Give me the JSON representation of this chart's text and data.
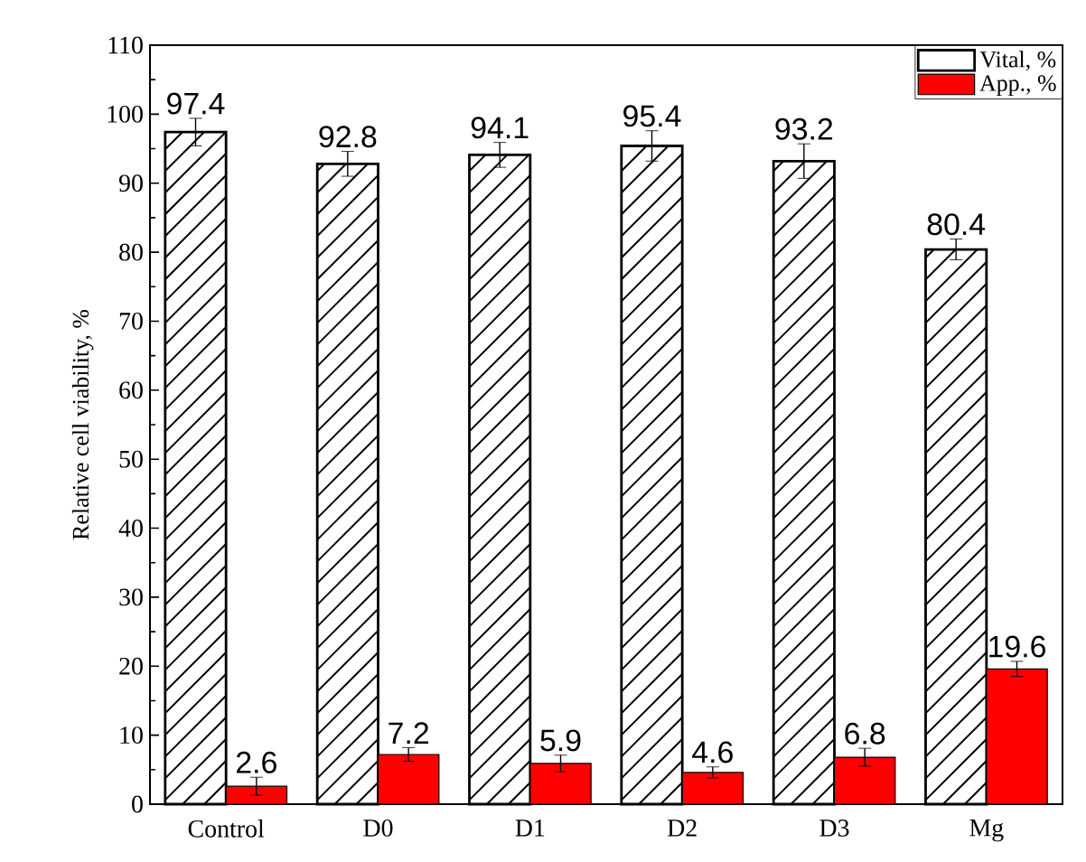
{
  "chart_data": {
    "type": "bar",
    "ylabel": "Relative cell viability, %",
    "categories": [
      "Control",
      "D0",
      "D1",
      "D2",
      "D3",
      "Mg"
    ],
    "series": [
      {
        "name": "Vital, %",
        "color": "#000000",
        "values": [
          97.4,
          92.8,
          94.1,
          95.4,
          93.2,
          80.4
        ],
        "errors": [
          2,
          1.8,
          1.8,
          2.2,
          2.5,
          1.5
        ]
      },
      {
        "name": "App., %",
        "color": "#ff0000",
        "values": [
          2.6,
          7.2,
          5.9,
          4.6,
          6.8,
          19.6
        ],
        "errors": [
          1.3,
          1,
          1.2,
          0.8,
          1.3,
          1.1
        ]
      }
    ],
    "ylim": [
      0,
      110
    ],
    "yticks": [
      0,
      10,
      20,
      30,
      40,
      50,
      60,
      70,
      80,
      90,
      100,
      110
    ],
    "data_labels": true,
    "legend": "top right",
    "grid": false
  }
}
